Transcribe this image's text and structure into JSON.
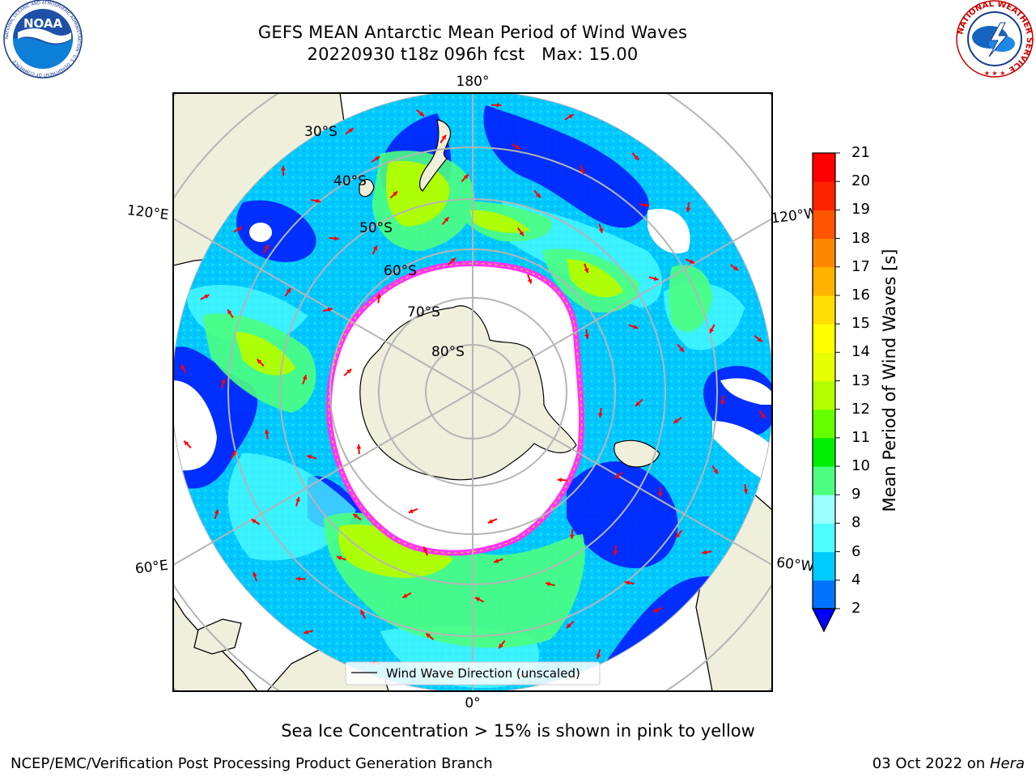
{
  "title": {
    "line1": "GEFS MEAN Antarctic Mean Period of Wind Waves",
    "line2": "20220930 t18z 096h fcst   Max: 15.00"
  },
  "logos": {
    "noaa": {
      "text": "NOAA",
      "ring_text": "NATIONAL OCEANIC AND ATMOSPHERIC ADMINISTRATION · U.S. DEPARTMENT OF COMMERCE",
      "icon": "noaa-logo-icon"
    },
    "nws": {
      "ring_text": "NATIONAL WEATHER SERVICE",
      "icon": "nws-logo-icon"
    }
  },
  "map": {
    "projection": "south-polar-stereographic",
    "longitude_labels": [
      "180°",
      "120°E",
      "120°W",
      "60°E",
      "60°W",
      "0°"
    ],
    "latitude_labels": [
      "30°S",
      "40°S",
      "50°S",
      "60°S",
      "70°S",
      "80°S"
    ],
    "legend_entry": "Wind Wave Direction (unscaled)",
    "arrow_color": "#ff0000",
    "land_color": "#efefdc",
    "sea_ice_color": "#ff33ff"
  },
  "colorbar": {
    "label": "Mean Period of Wind Waves [s]",
    "ticks": [
      "2",
      "4",
      "6",
      "8",
      "9",
      "10",
      "11",
      "12",
      "13",
      "14",
      "15",
      "16",
      "17",
      "18",
      "19",
      "20",
      "21"
    ],
    "colors": [
      "#0073ff",
      "#00ccff",
      "#4dffff",
      "#99ffff",
      "#4dff80",
      "#00ee00",
      "#66ff00",
      "#b3ff00",
      "#e6ff00",
      "#ffff00",
      "#ffdd00",
      "#ffb300",
      "#ff8800",
      "#ff5500",
      "#ff2200",
      "#ff0000"
    ],
    "extend_color": "#0000ff"
  },
  "footer": {
    "ice_note": "Sea Ice Concentration > 15% is shown in pink to yellow",
    "branch": "NCEP/EMC/Verification Post Processing Product Generation Branch",
    "date": "03 Oct 2022 on ",
    "machine": "Hera"
  }
}
